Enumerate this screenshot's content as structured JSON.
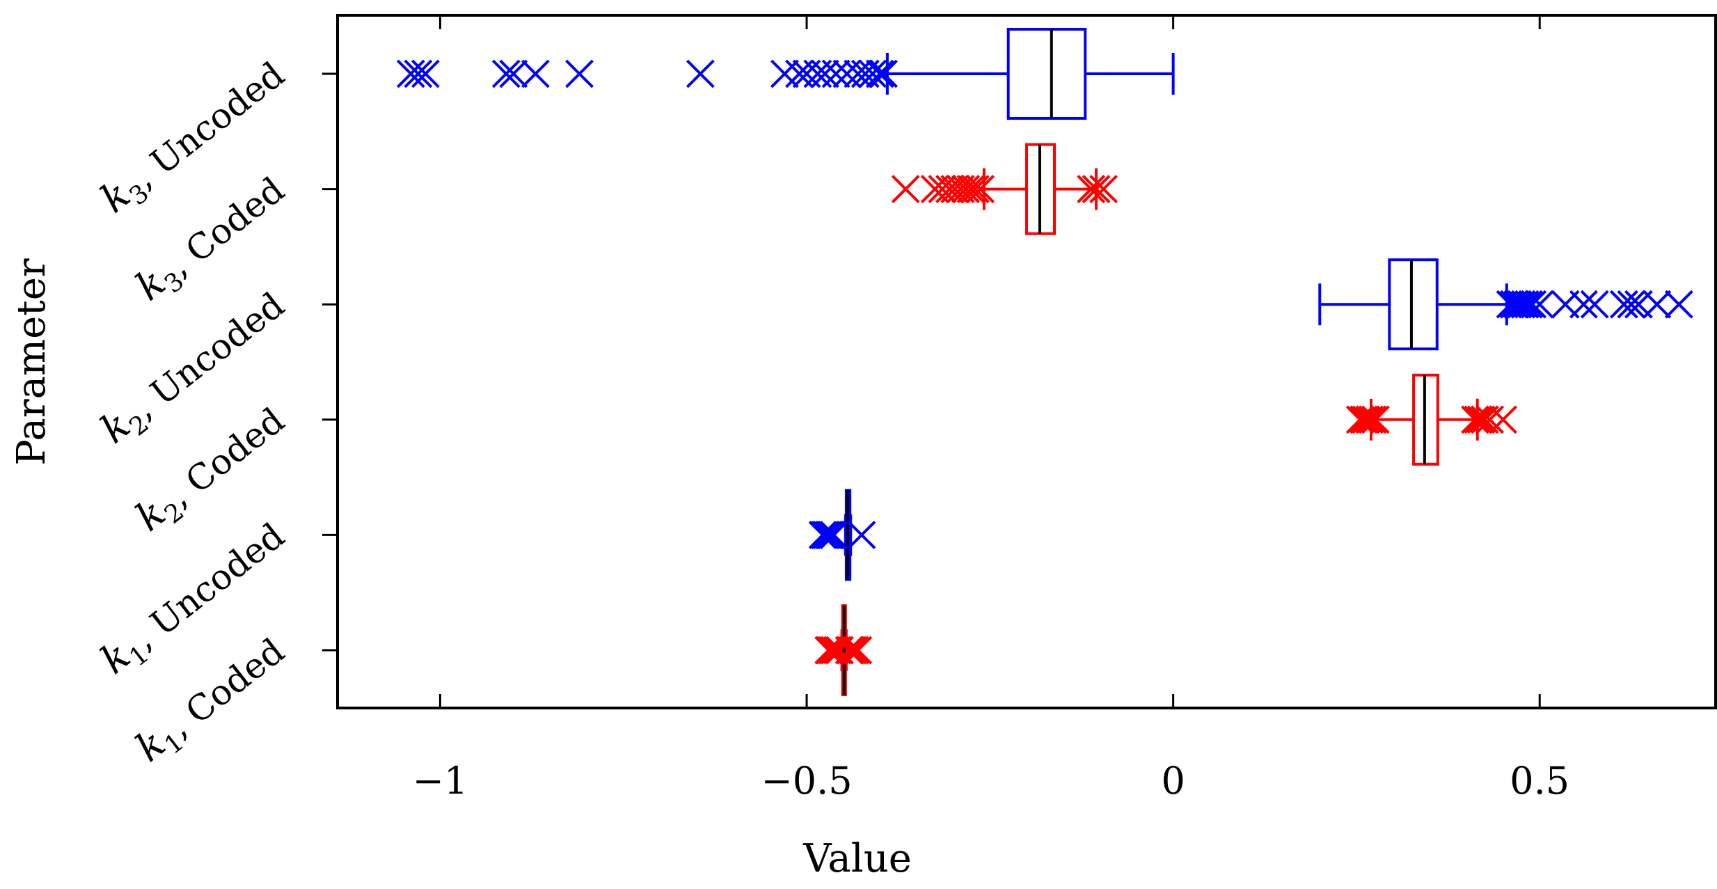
{
  "chart_data": {
    "type": "boxplot",
    "orientation": "horizontal",
    "title": "",
    "xlabel": "Value",
    "ylabel": "Parameter",
    "xlim": [
      -1.14,
      0.74
    ],
    "xticks": [
      {
        "value": -1,
        "label": "−1"
      },
      {
        "value": -0.5,
        "label": "−0.5"
      },
      {
        "value": 0,
        "label": "0"
      },
      {
        "value": 0.5,
        "label": "0.5"
      }
    ],
    "grid": false,
    "legend": "none",
    "colors": {
      "coded": "#ff0000",
      "uncoded": "#0000ff",
      "median": "#000000",
      "axis": "#000000"
    },
    "categories": [
      {
        "label": "k1, Coded",
        "symbol": "k",
        "subscript": "1",
        "suffix": ", Coded",
        "color": "#ff0000",
        "box": {
          "whisker_low": -0.452,
          "q1": -0.451,
          "median": -0.449,
          "q3": -0.447,
          "whisker_high": -0.446
        },
        "outliers": [
          -0.47,
          -0.468,
          -0.465,
          -0.462,
          -0.458,
          -0.455,
          -0.442,
          -0.44,
          -0.437,
          -0.434,
          -0.43
        ]
      },
      {
        "label": "k1, Uncoded",
        "symbol": "k",
        "subscript": "1",
        "suffix": ", Uncoded",
        "color": "#0000ff",
        "box": {
          "whisker_low": -0.447,
          "q1": -0.446,
          "median": -0.444,
          "q3": -0.441,
          "whisker_high": -0.44
        },
        "outliers": [
          -0.478,
          -0.475,
          -0.473,
          -0.47,
          -0.468,
          -0.466,
          -0.463,
          -0.425
        ]
      },
      {
        "label": "k2, Coded",
        "symbol": "k",
        "subscript": "2",
        "suffix": ", Coded",
        "color": "#ff0000",
        "box": {
          "whisker_low": 0.27,
          "q1": 0.328,
          "median": 0.343,
          "q3": 0.361,
          "whisker_high": 0.415
        },
        "outliers": [
          0.255,
          0.26,
          0.263,
          0.268,
          0.272,
          0.276,
          0.412,
          0.416,
          0.42,
          0.425,
          0.432,
          0.45
        ]
      },
      {
        "label": "k2, Uncoded",
        "symbol": "k",
        "subscript": "2",
        "suffix": ", Uncoded",
        "color": "#0000ff",
        "box": {
          "whisker_low": 0.2,
          "q1": 0.295,
          "median": 0.325,
          "q3": 0.36,
          "whisker_high": 0.455
        },
        "outliers": [
          0.46,
          0.465,
          0.47,
          0.475,
          0.48,
          0.485,
          0.49,
          0.5,
          0.535,
          0.56,
          0.575,
          0.615,
          0.625,
          0.635,
          0.66,
          0.69
        ]
      },
      {
        "label": "k3, Coded",
        "symbol": "k",
        "subscript": "3",
        "suffix": ", Coded",
        "color": "#ff0000",
        "box": {
          "whisker_low": -0.258,
          "q1": -0.2,
          "median": -0.182,
          "q3": -0.162,
          "whisker_high": -0.105
        },
        "outliers": [
          -0.365,
          -0.325,
          -0.315,
          -0.305,
          -0.298,
          -0.29,
          -0.283,
          -0.276,
          -0.27,
          -0.263,
          -0.112,
          -0.105,
          -0.095
        ]
      },
      {
        "label": "k3, Uncoded",
        "symbol": "k",
        "subscript": "3",
        "suffix": ", Uncoded",
        "color": "#0000ff",
        "box": {
          "whisker_low": -0.39,
          "q1": -0.225,
          "median": -0.166,
          "q3": -0.12,
          "whisker_high": 0.0
        },
        "outliers": [
          -1.04,
          -1.03,
          -1.02,
          -0.91,
          -0.9,
          -0.87,
          -0.81,
          -0.645,
          -0.53,
          -0.51,
          -0.5,
          -0.485,
          -0.475,
          -0.46,
          -0.445,
          -0.43,
          -0.42,
          -0.41,
          -0.4,
          -0.395
        ]
      }
    ]
  }
}
